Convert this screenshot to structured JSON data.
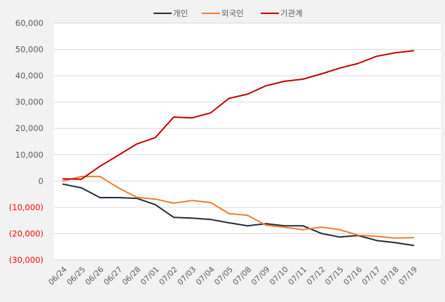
{
  "chart_data": {
    "type": "line",
    "title": "",
    "xlabel": "",
    "ylabel": "",
    "categories": [
      "06/24",
      "06/25",
      "06/26",
      "06/27",
      "06/28",
      "07/01",
      "07/02",
      "07/03",
      "07/04",
      "07/05",
      "07/08",
      "07/09",
      "07/10",
      "07/11",
      "07/12",
      "07/15",
      "07/16",
      "07/17",
      "07/18",
      "07/19"
    ],
    "series": [
      {
        "name": "개인",
        "color": "#1f2a3a",
        "values": [
          -1200,
          -2600,
          -6300,
          -6300,
          -6600,
          -9000,
          -13800,
          -14100,
          -14600,
          -15900,
          -17000,
          -16200,
          -17000,
          -17000,
          -19900,
          -21300,
          -20700,
          -22600,
          -23400,
          -24500
        ]
      },
      {
        "name": "외국인",
        "color": "#ed7d31",
        "values": [
          0,
          1700,
          1700,
          -2600,
          -6200,
          -6900,
          -8400,
          -7400,
          -8200,
          -12400,
          -13000,
          -16800,
          -17600,
          -18500,
          -17500,
          -18500,
          -20600,
          -21000,
          -21700,
          -21500
        ]
      },
      {
        "name": "기관계",
        "color": "#c00000",
        "values": [
          800,
          700,
          5600,
          9800,
          14100,
          16500,
          24300,
          24000,
          25900,
          31400,
          33000,
          36200,
          37900,
          38700,
          40700,
          42900,
          44700,
          47400,
          48700,
          49500
        ]
      }
    ],
    "ylim": [
      -30000,
      60000
    ],
    "yticks": [
      60000,
      50000,
      40000,
      30000,
      20000,
      10000,
      0,
      -10000,
      -20000,
      -30000
    ],
    "ytick_labels": [
      "60,000",
      "50,000",
      "40,000",
      "30,000",
      "20,000",
      "10,000",
      "0",
      "(10,000)",
      "(20,000)",
      "(30,000)"
    ],
    "negative_label_color": "#ff0000",
    "grid": true,
    "legend_position": "top"
  },
  "legend": {
    "items": [
      {
        "label": "개인",
        "color": "#1f2a3a"
      },
      {
        "label": "외국인",
        "color": "#ed7d31"
      },
      {
        "label": "기관계",
        "color": "#c00000"
      }
    ]
  }
}
